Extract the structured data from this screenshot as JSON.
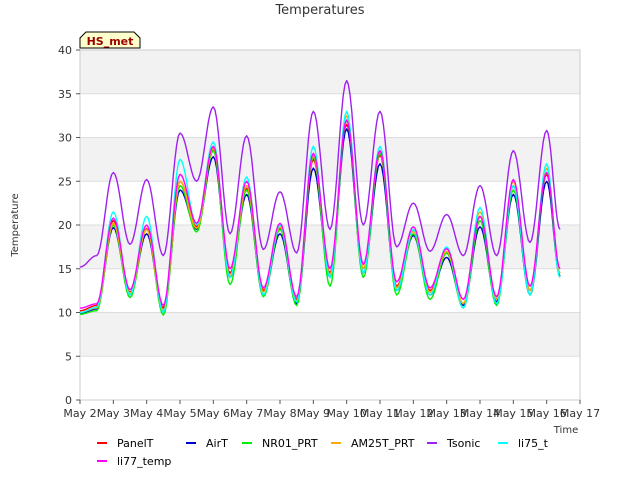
{
  "chart_data": {
    "type": "line",
    "title": "Temperatures",
    "xlabel": "Time",
    "ylabel": "Temperature",
    "tag": "HS_met",
    "ylim": [
      0,
      40
    ],
    "yticks": [
      0,
      5,
      10,
      15,
      20,
      25,
      30,
      35,
      40
    ],
    "xlim": [
      2,
      17
    ],
    "xticks": [
      {
        "value": 2,
        "label": "May 2"
      },
      {
        "value": 3,
        "label": "May 3"
      },
      {
        "value": 4,
        "label": "May 4"
      },
      {
        "value": 5,
        "label": "May 5"
      },
      {
        "value": 6,
        "label": "May 6"
      },
      {
        "value": 7,
        "label": "May 7"
      },
      {
        "value": 8,
        "label": "May 8"
      },
      {
        "value": 9,
        "label": "May 9"
      },
      {
        "value": 10,
        "label": "May 10"
      },
      {
        "value": 11,
        "label": "May 11"
      },
      {
        "value": 12,
        "label": "May 12"
      },
      {
        "value": 13,
        "label": "May 13"
      },
      {
        "value": 14,
        "label": "May 14"
      },
      {
        "value": 15,
        "label": "May 15"
      },
      {
        "value": 16,
        "label": "May 16"
      },
      {
        "value": 17,
        "label": "May 17"
      }
    ],
    "x": [
      2.0,
      2.5,
      3.0,
      3.5,
      4.0,
      4.5,
      5.0,
      5.5,
      6.0,
      6.5,
      7.0,
      7.5,
      8.0,
      8.5,
      9.0,
      9.5,
      10.0,
      10.5,
      11.0,
      11.5,
      12.0,
      12.5,
      13.0,
      13.5,
      14.0,
      14.5,
      15.0,
      15.5,
      16.0,
      16.4
    ],
    "series": [
      {
        "name": "PanelT",
        "color": "#ff0000",
        "values": [
          10.2,
          10.8,
          20.5,
          12.3,
          19.6,
          10.5,
          25.0,
          19.8,
          28.6,
          14.5,
          24.2,
          12.5,
          19.6,
          11.5,
          27.5,
          14.5,
          31.5,
          15.0,
          28.0,
          13.0,
          19.3,
          12.5,
          16.8,
          11.0,
          21.0,
          11.5,
          24.5,
          12.5,
          25.8,
          14.5
        ]
      },
      {
        "name": "AirT",
        "color": "#0000cc",
        "values": [
          9.9,
          10.4,
          19.7,
          12.0,
          19.0,
          10.2,
          24.0,
          19.5,
          27.8,
          14.0,
          23.5,
          12.0,
          19.0,
          11.0,
          26.5,
          14.0,
          31.0,
          14.5,
          27.0,
          12.5,
          18.8,
          12.0,
          16.3,
          10.8,
          19.8,
          11.2,
          23.5,
          12.0,
          25.0,
          14.2
        ]
      },
      {
        "name": "NR01_PRT",
        "color": "#00ee00",
        "values": [
          9.8,
          10.2,
          20.0,
          11.7,
          19.5,
          9.7,
          24.5,
          19.2,
          28.5,
          13.2,
          24.0,
          11.8,
          19.5,
          10.8,
          27.8,
          13.0,
          32.0,
          14.0,
          28.2,
          12.0,
          19.0,
          11.5,
          16.8,
          10.5,
          20.5,
          10.8,
          24.0,
          12.0,
          26.0,
          14.0
        ]
      },
      {
        "name": "AM25T_PRT",
        "color": "#ffaa00",
        "values": [
          10.0,
          10.5,
          20.2,
          12.2,
          19.5,
          10.2,
          25.0,
          19.6,
          28.8,
          14.2,
          24.5,
          12.3,
          19.8,
          11.3,
          28.0,
          14.3,
          32.5,
          15.0,
          28.5,
          12.8,
          19.3,
          12.3,
          17.0,
          11.0,
          21.5,
          11.5,
          25.0,
          12.5,
          26.5,
          14.5
        ]
      },
      {
        "name": "Tsonic",
        "color": "#a020f0",
        "values": [
          15.2,
          16.5,
          26.0,
          17.8,
          25.2,
          16.5,
          30.5,
          25.0,
          33.5,
          19.0,
          30.2,
          17.2,
          23.8,
          16.8,
          33.0,
          19.5,
          36.5,
          20.0,
          33.0,
          17.5,
          22.5,
          17.0,
          21.2,
          16.5,
          24.5,
          16.5,
          28.5,
          18.0,
          30.8,
          19.5
        ]
      },
      {
        "name": "li75_t",
        "color": "#00ffff",
        "values": [
          10.0,
          10.6,
          21.5,
          12.0,
          21.0,
          10.0,
          27.5,
          20.0,
          29.5,
          14.0,
          25.5,
          12.0,
          20.0,
          11.2,
          29.0,
          14.0,
          33.0,
          14.5,
          29.0,
          12.5,
          19.5,
          12.0,
          17.5,
          10.5,
          22.0,
          11.0,
          24.5,
          12.0,
          27.0,
          14.0
        ]
      },
      {
        "name": "li77_temp",
        "color": "#ff00ff",
        "values": [
          10.5,
          11.0,
          20.8,
          12.6,
          20.0,
          10.8,
          25.8,
          20.2,
          29.0,
          15.0,
          25.0,
          12.8,
          20.2,
          11.8,
          28.2,
          15.0,
          32.0,
          15.5,
          28.5,
          13.5,
          19.8,
          12.8,
          17.3,
          11.5,
          21.0,
          11.8,
          25.2,
          13.0,
          26.0,
          15.0
        ]
      }
    ]
  }
}
